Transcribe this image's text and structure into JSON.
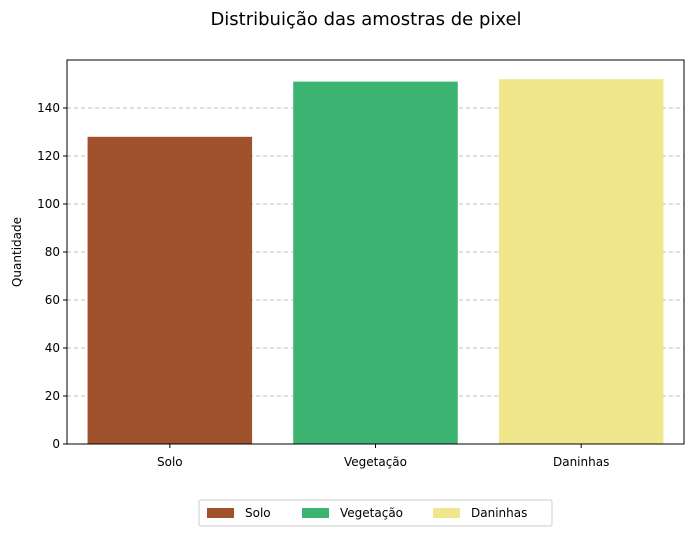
{
  "chart_data": {
    "type": "bar",
    "title": "Distribuição das amostras de pixel",
    "xlabel": "",
    "ylabel": "Quantidade",
    "categories": [
      "Solo",
      "Vegetação",
      "Daninhas"
    ],
    "values": [
      128,
      151,
      152
    ],
    "colors": [
      "#a0522d",
      "#3cb371",
      "#f0e68c"
    ],
    "ylim": [
      0,
      160
    ],
    "yticks": [
      0,
      20,
      40,
      60,
      80,
      100,
      120,
      140
    ],
    "grid": "y-dashed",
    "legend": {
      "placement": "bottom-center",
      "entries": [
        "Solo",
        "Vegetação",
        "Daninhas"
      ]
    }
  }
}
